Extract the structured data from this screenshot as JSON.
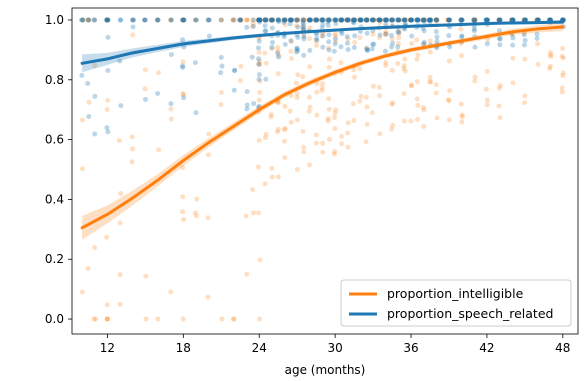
{
  "chart_data": {
    "type": "scatter",
    "xlabel": "age (months)",
    "ylabel": "",
    "xlim": [
      9.2,
      49.2
    ],
    "ylim": [
      -0.05,
      1.04
    ],
    "xticks": [
      12,
      18,
      24,
      30,
      36,
      42,
      48
    ],
    "yticks": [
      0.0,
      0.2,
      0.4,
      0.6,
      0.8,
      1.0
    ],
    "xtick_labels": [
      "12",
      "18",
      "24",
      "30",
      "36",
      "42",
      "48"
    ],
    "ytick_labels": [
      "0.0",
      "0.2",
      "0.4",
      "0.6",
      "0.8",
      "1.0"
    ],
    "grid": false,
    "legend_position": "lower-right",
    "series": [
      {
        "name": "proportion_intelligible",
        "color": "#ff7f0e",
        "fit": {
          "x": [
            10,
            12,
            14,
            16,
            18,
            20,
            22,
            24,
            26,
            28,
            30,
            32,
            34,
            36,
            38,
            40,
            42,
            44,
            46,
            48
          ],
          "y": [
            0.305,
            0.35,
            0.405,
            0.465,
            0.53,
            0.59,
            0.645,
            0.7,
            0.75,
            0.79,
            0.825,
            0.855,
            0.88,
            0.9,
            0.915,
            0.93,
            0.945,
            0.96,
            0.97,
            0.977
          ],
          "ci_width": [
            0.04,
            0.03,
            0.025,
            0.02,
            0.018,
            0.015,
            0.013,
            0.012,
            0.01,
            0.01,
            0.009,
            0.009,
            0.008,
            0.008,
            0.008,
            0.008,
            0.009,
            0.01,
            0.012,
            0.014
          ]
        }
      },
      {
        "name": "proportion_speech_related",
        "color": "#1f77b4",
        "fit": {
          "x": [
            10,
            12,
            14,
            16,
            18,
            20,
            22,
            24,
            26,
            28,
            30,
            32,
            34,
            36,
            38,
            40,
            42,
            44,
            46,
            48
          ],
          "y": [
            0.855,
            0.87,
            0.89,
            0.905,
            0.92,
            0.93,
            0.94,
            0.948,
            0.955,
            0.961,
            0.966,
            0.971,
            0.975,
            0.979,
            0.982,
            0.985,
            0.988,
            0.99,
            0.991,
            0.993
          ],
          "ci_width": [
            0.03,
            0.02,
            0.015,
            0.012,
            0.01,
            0.008,
            0.007,
            0.006,
            0.005,
            0.005,
            0.004,
            0.004,
            0.004,
            0.004,
            0.004,
            0.004,
            0.004,
            0.005,
            0.005,
            0.006
          ]
        }
      }
    ]
  }
}
